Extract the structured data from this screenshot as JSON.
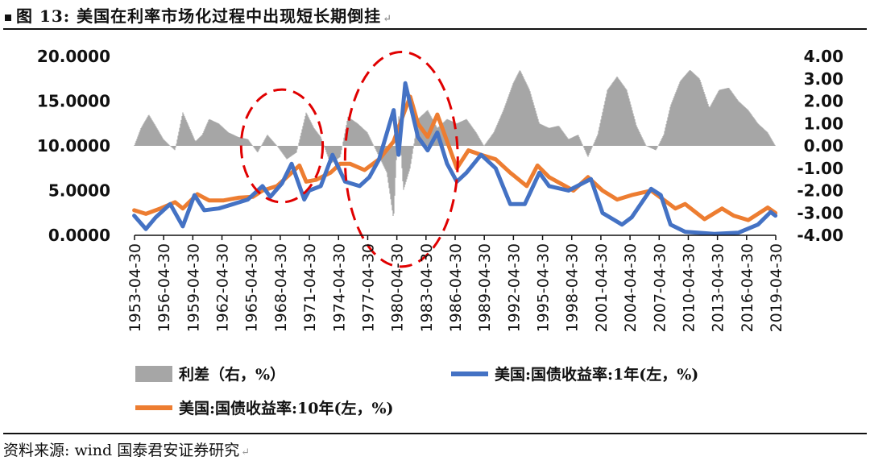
{
  "header": {
    "title": "图 13: 美国在利率市场化过程中出现短长期倒挂",
    "para_mark": "↵"
  },
  "footer": {
    "source": "资料来源: wind 国泰君安证券研究",
    "para_mark": "↵"
  },
  "chart_data": {
    "type": "line",
    "title": "图 13: 美国在利率市场化过程中出现短长期倒挂",
    "categories": [
      "1953-04-30",
      "1956-04-30",
      "1959-04-30",
      "1962-04-30",
      "1965-04-30",
      "1968-04-30",
      "1971-04-30",
      "1974-04-30",
      "1977-04-30",
      "1980-04-30",
      "1983-04-30",
      "1986-04-30",
      "1989-04-30",
      "1992-04-30",
      "1995-04-30",
      "1998-04-30",
      "2001-04-30",
      "2004-04-30",
      "2007-04-30",
      "2010-04-30",
      "2013-04-30",
      "2016-04-30",
      "2019-04-30"
    ],
    "y_left": {
      "ticks": [
        "20.0000",
        "15.0000",
        "10.0000",
        "5.0000",
        "0.0000"
      ],
      "range": [
        0,
        20
      ]
    },
    "y_right": {
      "ticks": [
        "4.00",
        "3.00",
        "2.00",
        "1.00",
        "0.00",
        "-1.00",
        "-2.00",
        "-3.00",
        "-4.00"
      ],
      "range": [
        -4,
        4
      ]
    },
    "x_range": [
      1953.33,
      2019.33
    ],
    "series": [
      {
        "name": "利差（右，%）",
        "kind": "area",
        "axis": "right",
        "color": "#a6a6a6",
        "points": [
          [
            1953.3,
            0.0
          ],
          [
            1954.0,
            0.8
          ],
          [
            1954.8,
            1.4
          ],
          [
            1955.5,
            0.9
          ],
          [
            1956.3,
            0.3
          ],
          [
            1957.0,
            0.0
          ],
          [
            1957.5,
            -0.2
          ],
          [
            1958.3,
            1.5
          ],
          [
            1959.0,
            0.8
          ],
          [
            1959.6,
            0.2
          ],
          [
            1960.3,
            0.5
          ],
          [
            1961.0,
            1.2
          ],
          [
            1962.0,
            1.0
          ],
          [
            1963.0,
            0.6
          ],
          [
            1964.0,
            0.4
          ],
          [
            1965.0,
            0.3
          ],
          [
            1966.0,
            -0.3
          ],
          [
            1967.0,
            0.5
          ],
          [
            1968.0,
            0.0
          ],
          [
            1969.0,
            -0.6
          ],
          [
            1970.0,
            -0.3
          ],
          [
            1971.0,
            1.5
          ],
          [
            1971.8,
            0.8
          ],
          [
            1972.5,
            0.4
          ],
          [
            1973.5,
            -0.8
          ],
          [
            1974.5,
            -0.5
          ],
          [
            1975.3,
            1.3
          ],
          [
            1976.3,
            1.0
          ],
          [
            1977.3,
            0.6
          ],
          [
            1978.3,
            -0.3
          ],
          [
            1979.3,
            -1.2
          ],
          [
            1980.0,
            -3.3
          ],
          [
            1980.5,
            1.5
          ],
          [
            1981.0,
            -2.0
          ],
          [
            1981.7,
            -1.0
          ],
          [
            1982.5,
            1.2
          ],
          [
            1983.5,
            1.6
          ],
          [
            1984.5,
            0.8
          ],
          [
            1985.5,
            1.2
          ],
          [
            1986.5,
            1.0
          ],
          [
            1987.5,
            1.2
          ],
          [
            1988.5,
            0.6
          ],
          [
            1989.3,
            0.0
          ],
          [
            1990.3,
            0.6
          ],
          [
            1991.3,
            1.6
          ],
          [
            1992.3,
            2.8
          ],
          [
            1993.0,
            3.4
          ],
          [
            1994.0,
            2.5
          ],
          [
            1995.0,
            1.0
          ],
          [
            1996.0,
            0.8
          ],
          [
            1997.0,
            0.9
          ],
          [
            1998.0,
            0.3
          ],
          [
            1999.0,
            0.5
          ],
          [
            2000.0,
            -0.5
          ],
          [
            2001.0,
            0.5
          ],
          [
            2002.0,
            2.5
          ],
          [
            2003.0,
            3.1
          ],
          [
            2004.0,
            2.5
          ],
          [
            2005.0,
            0.9
          ],
          [
            2006.0,
            0.0
          ],
          [
            2007.0,
            -0.2
          ],
          [
            2007.8,
            0.5
          ],
          [
            2008.5,
            1.8
          ],
          [
            2009.5,
            2.9
          ],
          [
            2010.5,
            3.4
          ],
          [
            2011.5,
            3.0
          ],
          [
            2012.5,
            1.7
          ],
          [
            2013.5,
            2.5
          ],
          [
            2014.5,
            2.6
          ],
          [
            2015.5,
            2.0
          ],
          [
            2016.5,
            1.6
          ],
          [
            2017.5,
            1.0
          ],
          [
            2018.5,
            0.6
          ],
          [
            2019.3,
            0.0
          ]
        ]
      },
      {
        "name": "美国:国债收益率:1年(左，%)",
        "kind": "line",
        "axis": "left",
        "color": "#4472c4",
        "points": [
          [
            1953.3,
            2.2
          ],
          [
            1954.5,
            0.7
          ],
          [
            1955.5,
            2.0
          ],
          [
            1957.0,
            3.5
          ],
          [
            1958.3,
            1.0
          ],
          [
            1959.5,
            4.5
          ],
          [
            1960.5,
            2.8
          ],
          [
            1962.0,
            3.0
          ],
          [
            1963.5,
            3.5
          ],
          [
            1965.0,
            4.0
          ],
          [
            1966.5,
            5.5
          ],
          [
            1967.3,
            4.3
          ],
          [
            1968.5,
            5.8
          ],
          [
            1969.5,
            8.0
          ],
          [
            1970.8,
            4.0
          ],
          [
            1971.3,
            5.0
          ],
          [
            1972.5,
            5.5
          ],
          [
            1973.7,
            9.0
          ],
          [
            1975.0,
            6.0
          ],
          [
            1976.5,
            5.5
          ],
          [
            1977.5,
            6.5
          ],
          [
            1978.5,
            8.5
          ],
          [
            1980.0,
            14.0
          ],
          [
            1980.5,
            9.0
          ],
          [
            1981.2,
            17.0
          ],
          [
            1982.5,
            11.0
          ],
          [
            1983.5,
            9.5
          ],
          [
            1984.5,
            11.5
          ],
          [
            1985.5,
            8.0
          ],
          [
            1986.5,
            6.0
          ],
          [
            1987.5,
            7.0
          ],
          [
            1989.0,
            9.0
          ],
          [
            1990.5,
            7.5
          ],
          [
            1992.0,
            3.5
          ],
          [
            1993.5,
            3.5
          ],
          [
            1995.0,
            7.0
          ],
          [
            1996.0,
            5.5
          ],
          [
            1998.0,
            5.0
          ],
          [
            2000.3,
            6.3
          ],
          [
            2001.5,
            2.5
          ],
          [
            2003.5,
            1.2
          ],
          [
            2004.5,
            2.0
          ],
          [
            2006.5,
            5.2
          ],
          [
            2007.5,
            4.5
          ],
          [
            2008.5,
            1.2
          ],
          [
            2010.0,
            0.4
          ],
          [
            2013.0,
            0.15
          ],
          [
            2015.5,
            0.3
          ],
          [
            2017.5,
            1.2
          ],
          [
            2018.8,
            2.6
          ],
          [
            2019.3,
            2.2
          ]
        ]
      },
      {
        "name": "美国:国债收益率:10年(左，%)",
        "kind": "line",
        "axis": "left",
        "color": "#ed7d31",
        "points": [
          [
            1953.3,
            2.8
          ],
          [
            1954.5,
            2.4
          ],
          [
            1956.0,
            3.0
          ],
          [
            1957.5,
            3.7
          ],
          [
            1958.3,
            3.0
          ],
          [
            1959.8,
            4.6
          ],
          [
            1961.0,
            3.9
          ],
          [
            1962.5,
            3.9
          ],
          [
            1964.0,
            4.2
          ],
          [
            1965.5,
            4.3
          ],
          [
            1966.5,
            5.0
          ],
          [
            1968.0,
            5.5
          ],
          [
            1969.5,
            7.0
          ],
          [
            1970.3,
            7.8
          ],
          [
            1971.0,
            6.0
          ],
          [
            1972.0,
            6.2
          ],
          [
            1973.5,
            7.0
          ],
          [
            1974.5,
            8.0
          ],
          [
            1975.5,
            8.0
          ],
          [
            1977.0,
            7.3
          ],
          [
            1978.5,
            8.5
          ],
          [
            1980.0,
            10.5
          ],
          [
            1981.0,
            13.5
          ],
          [
            1981.7,
            15.5
          ],
          [
            1982.5,
            12.5
          ],
          [
            1983.5,
            11.0
          ],
          [
            1984.5,
            13.5
          ],
          [
            1985.5,
            10.5
          ],
          [
            1986.5,
            7.5
          ],
          [
            1987.7,
            9.5
          ],
          [
            1989.0,
            9.0
          ],
          [
            1990.5,
            8.5
          ],
          [
            1992.0,
            7.0
          ],
          [
            1993.7,
            5.5
          ],
          [
            1994.8,
            7.8
          ],
          [
            1996.0,
            6.5
          ],
          [
            1998.5,
            5.0
          ],
          [
            2000.0,
            6.5
          ],
          [
            2001.5,
            5.0
          ],
          [
            2003.0,
            4.0
          ],
          [
            2004.5,
            4.5
          ],
          [
            2006.5,
            5.0
          ],
          [
            2008.0,
            3.8
          ],
          [
            2009.0,
            3.0
          ],
          [
            2010.0,
            3.5
          ],
          [
            2012.0,
            1.8
          ],
          [
            2013.8,
            3.0
          ],
          [
            2015.0,
            2.2
          ],
          [
            2016.5,
            1.7
          ],
          [
            2018.5,
            3.1
          ],
          [
            2019.3,
            2.5
          ]
        ]
      }
    ],
    "legend": [
      {
        "label": "利差（右，%）",
        "series": 0
      },
      {
        "label": "美国:国债收益率:1年(左，%)",
        "series": 1
      },
      {
        "label": "美国:国债收益率:10年(左，%)",
        "series": 2
      }
    ],
    "annotations": [
      {
        "shape": "dashed-ellipse",
        "color": "#e00000",
        "center": [
          1968.5,
          10.0
        ],
        "radius": [
          4.2,
          6.3
        ]
      },
      {
        "shape": "dashed-ellipse",
        "color": "#e00000",
        "center": [
          1980.8,
          8.5
        ],
        "radius": [
          5.8,
          12.0
        ]
      }
    ]
  }
}
